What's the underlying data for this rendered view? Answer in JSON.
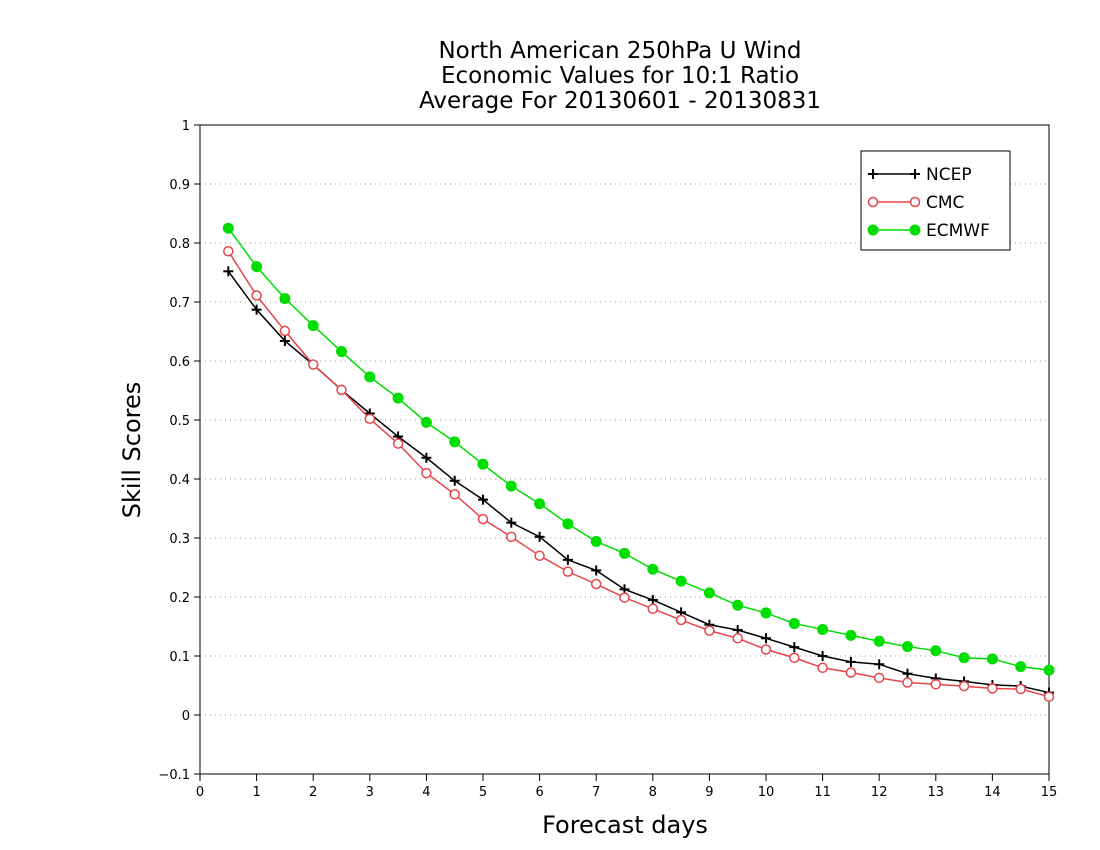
{
  "chart_data": {
    "type": "line",
    "title": [
      "North American 250hPa U Wind",
      "Economic Values for 10:1 Ratio",
      "Average For 20130601 - 20130831"
    ],
    "xlabel": "Forecast days",
    "ylabel": "Skill Scores",
    "xlim": [
      0,
      15
    ],
    "ylim": [
      -0.1,
      1
    ],
    "xticks": [
      "0",
      "1",
      "2",
      "3",
      "4",
      "5",
      "6",
      "7",
      "8",
      "9",
      "10",
      "11",
      "12",
      "13",
      "14",
      "15"
    ],
    "yticks": [
      "−0.1",
      "0",
      "0.1",
      "0.2",
      "0.3",
      "0.4",
      "0.5",
      "0.6",
      "0.7",
      "0.8",
      "0.9",
      "1"
    ],
    "grid": "horizontal-dotted",
    "legend_position": "top-right",
    "x": [
      0.5,
      1,
      1.5,
      2,
      2.5,
      3,
      3.5,
      4,
      4.5,
      5,
      5.5,
      6,
      6.5,
      7,
      7.5,
      8,
      8.5,
      9,
      9.5,
      10,
      10.5,
      11,
      11.5,
      12,
      12.5,
      13,
      13.5,
      14,
      14.5,
      15
    ],
    "series": [
      {
        "name": "NCEP",
        "color": "#000000",
        "marker": "plus",
        "values": [
          0.752,
          0.687,
          0.634,
          0.594,
          0.551,
          0.511,
          0.472,
          0.436,
          0.397,
          0.365,
          0.326,
          0.302,
          0.263,
          0.245,
          0.213,
          0.195,
          0.174,
          0.153,
          0.144,
          0.13,
          0.115,
          0.1,
          0.09,
          0.086,
          0.07,
          0.062,
          0.057,
          0.051,
          0.049,
          0.038
        ]
      },
      {
        "name": "CMC",
        "color": "#e8454a",
        "marker": "open-circle",
        "values": [
          0.786,
          0.711,
          0.651,
          0.594,
          0.551,
          0.502,
          0.46,
          0.41,
          0.374,
          0.332,
          0.302,
          0.27,
          0.243,
          0.222,
          0.199,
          0.18,
          0.161,
          0.143,
          0.13,
          0.111,
          0.097,
          0.08,
          0.072,
          0.063,
          0.055,
          0.052,
          0.049,
          0.045,
          0.044,
          0.031
        ]
      },
      {
        "name": "ECMWF",
        "color": "#00dd00",
        "marker": "filled-circle",
        "values": [
          0.825,
          0.76,
          0.706,
          0.66,
          0.616,
          0.573,
          0.537,
          0.496,
          0.463,
          0.425,
          0.388,
          0.358,
          0.324,
          0.294,
          0.274,
          0.247,
          0.227,
          0.207,
          0.186,
          0.173,
          0.155,
          0.145,
          0.135,
          0.125,
          0.116,
          0.109,
          0.097,
          0.095,
          0.082,
          0.076
        ]
      }
    ]
  }
}
